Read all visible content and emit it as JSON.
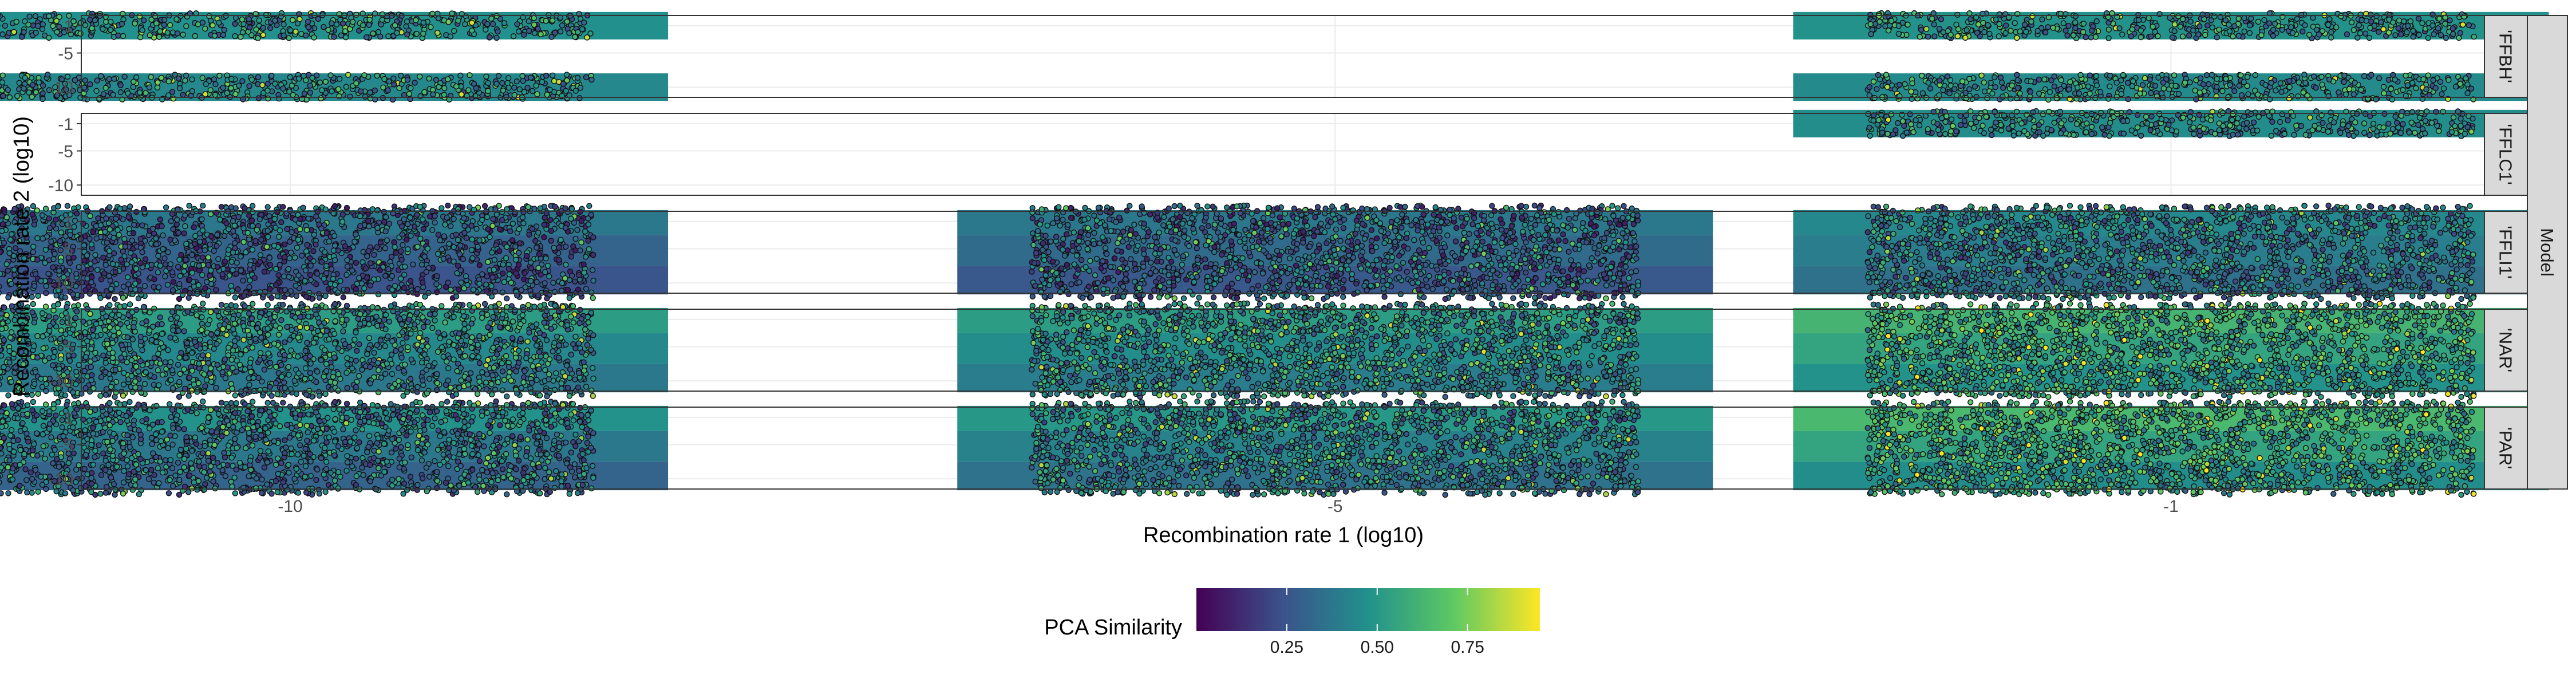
{
  "chart_data": {
    "type": "heatmap",
    "xlabel": "Recombination rate 1 (log10)",
    "ylabel": "Recombination rate 2 (log10)",
    "facet_strip_title": "Model",
    "x_ticks": [
      -10,
      -5,
      -1
    ],
    "y_ticks": [
      -1,
      -5,
      -10
    ],
    "x_tick_labels": [
      "-10",
      "-5",
      "-1"
    ],
    "y_tick_labels": [
      "-1",
      "-5",
      "-10"
    ],
    "x_levels": [
      -10,
      -5,
      -1
    ],
    "y_levels": [
      -1,
      -5,
      -10
    ],
    "grid": true,
    "legend": {
      "title": "PCA Similarity",
      "position": "bottom",
      "breaks": [
        0.25,
        0.5,
        0.75
      ],
      "break_labels": [
        "0.25",
        "0.50",
        "0.75"
      ],
      "range": [
        0.0,
        0.95
      ],
      "palette": [
        "#440154",
        "#3b528b",
        "#21918c",
        "#5ec962",
        "#fde725"
      ]
    },
    "facets": [
      {
        "label": "'FFBH'",
        "cells": [
          {
            "x": -10,
            "y": -1,
            "value": 0.47
          },
          {
            "x": -10,
            "y": -10,
            "value": 0.44
          },
          {
            "x": -1,
            "y": -1,
            "value": 0.48
          },
          {
            "x": -1,
            "y": -10,
            "value": 0.45
          }
        ]
      },
      {
        "label": "'FFLC1'",
        "cells": [
          {
            "x": -1,
            "y": -1,
            "value": 0.46
          }
        ]
      },
      {
        "label": "'FFLI1'",
        "cells": [
          {
            "x": -10,
            "y": -1,
            "value": 0.38
          },
          {
            "x": -10,
            "y": -5,
            "value": 0.3
          },
          {
            "x": -10,
            "y": -10,
            "value": 0.25
          },
          {
            "x": -5,
            "y": -1,
            "value": 0.38
          },
          {
            "x": -5,
            "y": -5,
            "value": 0.33
          },
          {
            "x": -5,
            "y": -10,
            "value": 0.26
          },
          {
            "x": -1,
            "y": -1,
            "value": 0.44
          },
          {
            "x": -1,
            "y": -5,
            "value": 0.4
          },
          {
            "x": -1,
            "y": -10,
            "value": 0.35
          }
        ]
      },
      {
        "label": "'NAR'",
        "cells": [
          {
            "x": -10,
            "y": -1,
            "value": 0.52
          },
          {
            "x": -10,
            "y": -5,
            "value": 0.44
          },
          {
            "x": -10,
            "y": -10,
            "value": 0.38
          },
          {
            "x": -5,
            "y": -1,
            "value": 0.52
          },
          {
            "x": -5,
            "y": -5,
            "value": 0.46
          },
          {
            "x": -5,
            "y": -10,
            "value": 0.4
          },
          {
            "x": -1,
            "y": -1,
            "value": 0.62
          },
          {
            "x": -1,
            "y": -5,
            "value": 0.55
          },
          {
            "x": -1,
            "y": -10,
            "value": 0.48
          }
        ]
      },
      {
        "label": "'PAR'",
        "cells": [
          {
            "x": -10,
            "y": -1,
            "value": 0.48
          },
          {
            "x": -10,
            "y": -5,
            "value": 0.38
          },
          {
            "x": -10,
            "y": -10,
            "value": 0.3
          },
          {
            "x": -5,
            "y": -1,
            "value": 0.5
          },
          {
            "x": -5,
            "y": -5,
            "value": 0.42
          },
          {
            "x": -5,
            "y": -10,
            "value": 0.36
          },
          {
            "x": -1,
            "y": -1,
            "value": 0.64
          },
          {
            "x": -1,
            "y": -5,
            "value": 0.55
          },
          {
            "x": -1,
            "y": -10,
            "value": 0.46
          }
        ]
      }
    ]
  }
}
